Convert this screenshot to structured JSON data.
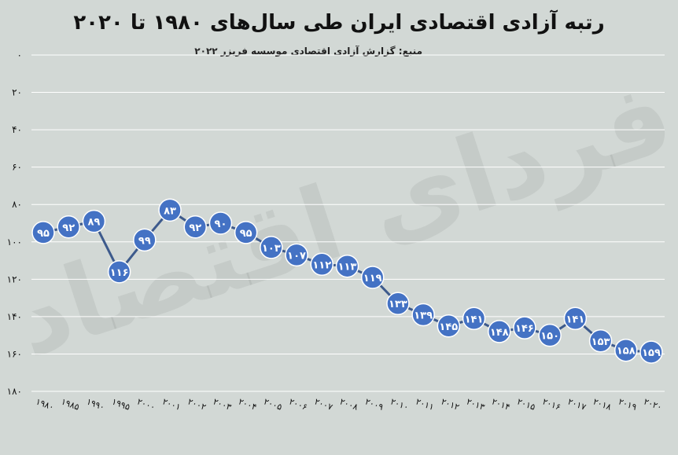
{
  "chart_data": {
    "type": "line",
    "title": "رتبه آزادی اقتصادی ایران طی سال‌های ۱۹۸۰ تا ۲۰۲۰",
    "subtitle": "منبع: گزارش آزادی اقتصادی موسسه فریزر ۲۰۲۲",
    "watermark": "فردای اقتصاد",
    "categories": [
      "۱۹۸۰",
      "۱۹۸۵",
      "۱۹۹۰",
      "۱۹۹۵",
      "۲۰۰۰",
      "۲۰۰۱",
      "۲۰۰۲",
      "۲۰۰۳",
      "۲۰۰۴",
      "۲۰۰۵",
      "۲۰۰۶",
      "۲۰۰۷",
      "۲۰۰۸",
      "۲۰۰۹",
      "۲۰۱۰",
      "۲۰۱۱",
      "۲۰۱۲",
      "۲۰۱۳",
      "۲۰۱۴",
      "۲۰۱۵",
      "۲۰۱۶",
      "۲۰۱۷",
      "۲۰۱۸",
      "۲۰۱۹",
      "۲۰۲۰"
    ],
    "values": [
      95,
      92,
      89,
      116,
      99,
      83,
      92,
      90,
      95,
      103,
      107,
      112,
      113,
      119,
      133,
      139,
      145,
      141,
      148,
      146,
      150,
      141,
      153,
      158,
      159
    ],
    "value_labels": [
      "۹۵",
      "۹۲",
      "۸۹",
      "۱۱۶",
      "۹۹",
      "۸۳",
      "۹۲",
      "۹۰",
      "۹۵",
      "۱۰۳",
      "۱۰۷",
      "۱۱۲",
      "۱۱۳",
      "۱۱۹",
      "۱۳۳",
      "۱۳۹",
      "۱۴۵",
      "۱۴۱",
      "۱۴۸",
      "۱۴۶",
      "۱۵۰",
      "۱۴۱",
      "۱۵۳",
      "۱۵۸",
      "۱۵۹"
    ],
    "yticks": [
      0,
      20,
      40,
      60,
      80,
      100,
      120,
      140,
      160,
      180
    ],
    "ytick_labels": [
      "۰",
      "۲۰",
      "۴۰",
      "۶۰",
      "۸۰",
      "۱۰۰",
      "۱۲۰",
      "۱۴۰",
      "۱۶۰",
      "۱۸۰"
    ],
    "ylim": [
      0,
      180
    ],
    "y_reversed": true,
    "grid": true,
    "colors": {
      "background": "#d2d8d5",
      "line": "#3d5a8c",
      "marker": "#4472c4",
      "grid": "#ffffff"
    }
  }
}
